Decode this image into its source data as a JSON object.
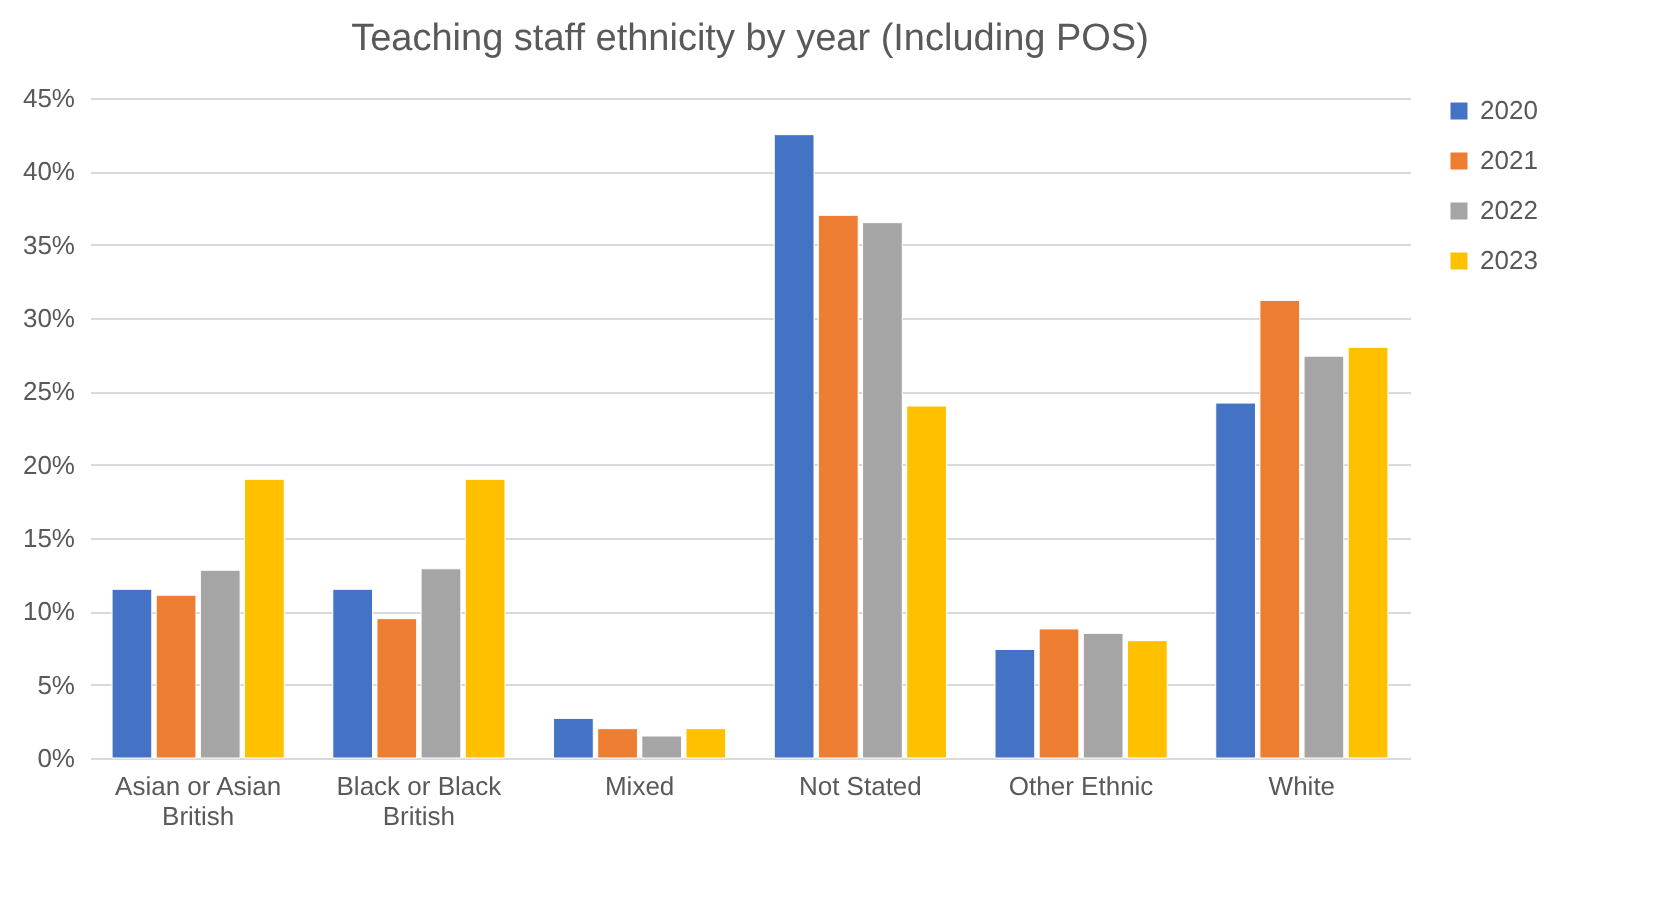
{
  "chart_data": {
    "type": "bar",
    "title": "Teaching staff ethnicity by year (Including POS)",
    "categories": [
      "Asian or Asian British",
      "Black or Black British",
      "Mixed",
      "Not Stated",
      "Other Ethnic",
      "White"
    ],
    "series": [
      {
        "name": "2020",
        "color": "#4472c4",
        "values": [
          11.5,
          11.5,
          2.7,
          42.5,
          7.4,
          24.2
        ]
      },
      {
        "name": "2021",
        "color": "#ed7d31",
        "values": [
          11.1,
          9.5,
          2.0,
          37.0,
          8.8,
          31.2
        ]
      },
      {
        "name": "2022",
        "color": "#a5a5a5",
        "values": [
          12.8,
          12.9,
          1.5,
          36.5,
          8.5,
          27.4
        ]
      },
      {
        "name": "2023",
        "color": "#ffc000",
        "values": [
          19.0,
          19.0,
          2.0,
          24.0,
          8.0,
          28.0
        ]
      }
    ],
    "ylim": [
      0,
      45
    ],
    "yticks": [
      {
        "value": 0,
        "label": "0%"
      },
      {
        "value": 5,
        "label": "5%"
      },
      {
        "value": 10,
        "label": "10%"
      },
      {
        "value": 15,
        "label": "15%"
      },
      {
        "value": 20,
        "label": "20%"
      },
      {
        "value": 25,
        "label": "25%"
      },
      {
        "value": 30,
        "label": "30%"
      },
      {
        "value": 35,
        "label": "35%"
      },
      {
        "value": 40,
        "label": "40%"
      },
      {
        "value": 45,
        "label": "45%"
      }
    ],
    "grid": "y",
    "legend": "right"
  }
}
